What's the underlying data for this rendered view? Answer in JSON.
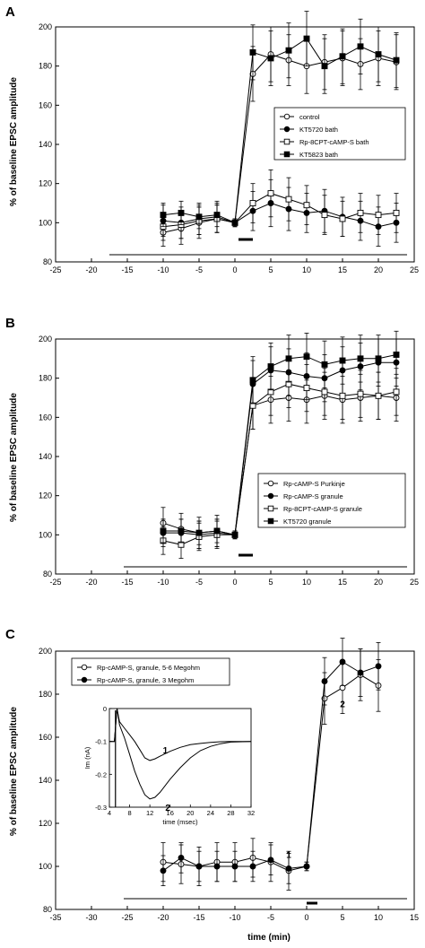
{
  "chart_data": [
    {
      "type": "line",
      "panel": "A",
      "ylabel": "% of baseline EPSC amplitude",
      "xlabel": "",
      "xlim": [
        -25,
        25
      ],
      "ylim": [
        80,
        200
      ],
      "xticks": [
        "-25",
        "-20",
        "-15",
        "-10",
        "-5",
        "0",
        "5",
        "10",
        "15",
        "20",
        "25"
      ],
      "yticks": [
        "80",
        "100",
        "120",
        "140",
        "160",
        "180",
        "200"
      ],
      "legend": {
        "placement": "right-middle",
        "entries": [
          "control",
          "KT5720 bath",
          "Rp-8CPT-cAMP-S bath",
          "KT5823 bath"
        ]
      },
      "baseline_line": [
        -17.5,
        24
      ],
      "stim_bar": [
        0.5,
        2.5
      ],
      "series": [
        {
          "name": "control",
          "marker": "open-circle",
          "x": [
            -10,
            -7.5,
            -5,
            -2.5,
            0,
            2.5,
            5,
            7.5,
            10,
            12.5,
            15,
            17.5,
            20,
            22.5
          ],
          "y": [
            95,
            97,
            100,
            102,
            100,
            176,
            186,
            183,
            180,
            182,
            184,
            181,
            184,
            182
          ],
          "err": [
            7,
            8,
            8,
            7,
            2,
            14,
            14,
            13,
            14,
            14,
            14,
            13,
            14,
            14
          ]
        },
        {
          "name": "KT5720 bath",
          "marker": "filled-circle",
          "x": [
            -10,
            -7.5,
            -5,
            -2.5,
            0,
            2.5,
            5,
            7.5,
            10,
            12.5,
            15,
            17.5,
            20,
            22.5
          ],
          "y": [
            101,
            100,
            102,
            103,
            100,
            106,
            110,
            107,
            105,
            106,
            103,
            101,
            98,
            100
          ],
          "err": [
            8,
            8,
            8,
            8,
            2,
            10,
            12,
            11,
            10,
            11,
            10,
            10,
            10,
            10
          ]
        },
        {
          "name": "Rp-8CPT-cAMP-S bath",
          "marker": "open-square",
          "x": [
            -10,
            -7.5,
            -5,
            -2.5,
            0,
            2.5,
            5,
            7.5,
            10,
            12.5,
            15,
            17.5,
            20,
            22.5
          ],
          "y": [
            98,
            99,
            101,
            102,
            100,
            110,
            115,
            112,
            109,
            104,
            102,
            105,
            104,
            105
          ],
          "err": [
            7,
            7,
            7,
            7,
            2,
            10,
            12,
            11,
            10,
            10,
            9,
            10,
            10,
            10
          ]
        },
        {
          "name": "KT5823 bath",
          "marker": "filled-square",
          "x": [
            -10,
            -7.5,
            -5,
            -2.5,
            0,
            2.5,
            5,
            7.5,
            10,
            12.5,
            15,
            17.5,
            20,
            22.5
          ],
          "y": [
            104,
            105,
            103,
            104,
            100,
            187,
            184,
            188,
            194,
            180,
            185,
            190,
            186,
            183
          ],
          "err": [
            6,
            6,
            6,
            6,
            2,
            14,
            14,
            14,
            14,
            14,
            14,
            14,
            14,
            14
          ]
        }
      ]
    },
    {
      "type": "line",
      "panel": "B",
      "ylabel": "% of baseline EPSC amplitude",
      "xlabel": "",
      "xlim": [
        -25,
        25
      ],
      "ylim": [
        80,
        200
      ],
      "xticks": [
        "-25",
        "-20",
        "-15",
        "-10",
        "-5",
        "0",
        "5",
        "10",
        "15",
        "20",
        "25"
      ],
      "yticks": [
        "80",
        "100",
        "120",
        "140",
        "160",
        "180",
        "200"
      ],
      "legend": {
        "placement": "bottom-right",
        "entries": [
          "Rp-cAMP-S Purkinje",
          "Rp-cAMP-S granule",
          "Rp-8CPT-cAMP-S granule",
          "KT5720 granule"
        ]
      },
      "baseline_line": [
        -15.5,
        24
      ],
      "stim_bar": [
        0.5,
        2.5
      ],
      "series": [
        {
          "name": "Rp-cAMP-S Purkinje",
          "marker": "open-circle",
          "x": [
            -10,
            -7.5,
            -5,
            -2.5,
            0,
            2.5,
            5,
            7.5,
            10,
            12.5,
            15,
            17.5,
            20,
            22.5
          ],
          "y": [
            106,
            103,
            101,
            102,
            100,
            166,
            169,
            170,
            169,
            171,
            169,
            170,
            171,
            170
          ],
          "err": [
            8,
            8,
            8,
            8,
            2,
            12,
            12,
            12,
            12,
            12,
            12,
            12,
            12,
            12
          ]
        },
        {
          "name": "Rp-cAMP-S granule",
          "marker": "filled-circle",
          "x": [
            -10,
            -7.5,
            -5,
            -2.5,
            0,
            2.5,
            5,
            7.5,
            10,
            12.5,
            15,
            17.5,
            20,
            22.5
          ],
          "y": [
            101,
            101,
            100,
            101,
            100,
            177,
            184,
            183,
            181,
            180,
            184,
            186,
            188,
            188
          ],
          "err": [
            7,
            7,
            7,
            7,
            2,
            12,
            12,
            12,
            12,
            12,
            12,
            12,
            12,
            12
          ]
        },
        {
          "name": "Rp-8CPT-cAMP-S granule",
          "marker": "open-square",
          "x": [
            -10,
            -7.5,
            -5,
            -2.5,
            0,
            2.5,
            5,
            7.5,
            10,
            12.5,
            15,
            17.5,
            20,
            22.5
          ],
          "y": [
            97,
            95,
            99,
            100,
            100,
            166,
            173,
            177,
            175,
            173,
            171,
            172,
            171,
            173
          ],
          "err": [
            7,
            7,
            7,
            7,
            2,
            12,
            12,
            12,
            12,
            12,
            12,
            12,
            12,
            12
          ]
        },
        {
          "name": "KT5720 granule",
          "marker": "filled-square",
          "x": [
            -10,
            -7.5,
            -5,
            -2.5,
            0,
            2.5,
            5,
            7.5,
            10,
            12.5,
            15,
            17.5,
            20,
            22.5
          ],
          "y": [
            102,
            102,
            101,
            102,
            100,
            179,
            186,
            190,
            191,
            187,
            189,
            190,
            190,
            192
          ],
          "err": [
            6,
            6,
            6,
            6,
            2,
            12,
            12,
            12,
            12,
            12,
            12,
            12,
            12,
            12
          ]
        }
      ]
    },
    {
      "type": "line",
      "panel": "C",
      "ylabel": "% of baseline EPSC amplitude",
      "xlabel": "time (min)",
      "xlim": [
        -35,
        15
      ],
      "ylim": [
        80,
        200
      ],
      "xticks": [
        "-35",
        "-30",
        "-25",
        "-20",
        "-15",
        "-10",
        "-5",
        "0",
        "5",
        "10",
        "15"
      ],
      "yticks": [
        "80",
        "100",
        "120",
        "140",
        "160",
        "180",
        "200"
      ],
      "legend": {
        "placement": "top-left",
        "entries": [
          "Rp-cAMP-S, granule, 5-6 Megohm",
          "Rp-cAMP-S, granule, 3 Megohm"
        ]
      },
      "baseline_line": [
        -25.5,
        14
      ],
      "stim_bar": [
        0,
        1.5
      ],
      "annotations": [
        {
          "text": "1",
          "x": -2.5,
          "y": 104
        },
        {
          "text": "2",
          "x": 5,
          "y": 174
        }
      ],
      "series": [
        {
          "name": "Rp-cAMP-S, granule, 5-6 Megohm",
          "marker": "open-circle",
          "x": [
            -20,
            -17.5,
            -15,
            -12.5,
            -10,
            -7.5,
            -5,
            -2.5,
            0,
            2.5,
            5,
            7.5,
            10
          ],
          "y": [
            102,
            101,
            100,
            102,
            102,
            104,
            102,
            98,
            100,
            178,
            183,
            189,
            184
          ],
          "err": [
            9,
            9,
            9,
            9,
            9,
            9,
            9,
            9,
            2,
            12,
            12,
            12,
            12
          ]
        },
        {
          "name": "Rp-cAMP-S, granule, 3 Megohm",
          "marker": "filled-circle",
          "x": [
            -20,
            -17.5,
            -15,
            -12.5,
            -10,
            -7.5,
            -5,
            -2.5,
            0,
            2.5,
            5,
            7.5,
            10
          ],
          "y": [
            98,
            104,
            100,
            100,
            100,
            100,
            103,
            99,
            100,
            186,
            195,
            190,
            193
          ],
          "err": [
            7,
            7,
            7,
            7,
            7,
            7,
            7,
            7,
            2,
            11,
            11,
            11,
            11
          ]
        }
      ],
      "inset": {
        "type": "line",
        "xlabel": "time (msec)",
        "ylabel": "Im (nA)",
        "xlim": [
          4,
          32
        ],
        "ylim": [
          -0.3,
          0
        ],
        "xticks": [
          "4",
          "8",
          "12",
          "16",
          "20",
          "24",
          "28",
          "32"
        ],
        "yticks": [
          "0",
          "-0.1",
          "-0.2",
          "-0.3"
        ],
        "labels": [
          {
            "text": "1",
            "x": 13.5,
            "y": -0.125
          },
          {
            "text": "2",
            "x": 14,
            "y": -0.3
          }
        ],
        "series": [
          {
            "name": "1",
            "x": [
              4,
              5,
              5.5,
              6,
              7,
              8,
              9,
              10,
              11,
              12,
              13,
              14,
              16,
              18,
              20,
              22,
              24,
              26,
              28,
              32
            ],
            "y": [
              -0.1,
              -0.1,
              0,
              -0.04,
              -0.06,
              -0.08,
              -0.1,
              -0.125,
              -0.15,
              -0.158,
              -0.153,
              -0.145,
              -0.13,
              -0.118,
              -0.11,
              -0.106,
              -0.103,
              -0.101,
              -0.1,
              -0.1
            ]
          },
          {
            "name": "2",
            "x": [
              4,
              5,
              5.5,
              6,
              7,
              8,
              9,
              10,
              11,
              12,
              13,
              14,
              16,
              18,
              20,
              22,
              24,
              26,
              28,
              32
            ],
            "y": [
              -0.1,
              -0.1,
              0,
              -0.05,
              -0.09,
              -0.14,
              -0.19,
              -0.23,
              -0.262,
              -0.275,
              -0.27,
              -0.255,
              -0.215,
              -0.18,
              -0.15,
              -0.128,
              -0.115,
              -0.107,
              -0.102,
              -0.1
            ]
          }
        ]
      }
    }
  ]
}
